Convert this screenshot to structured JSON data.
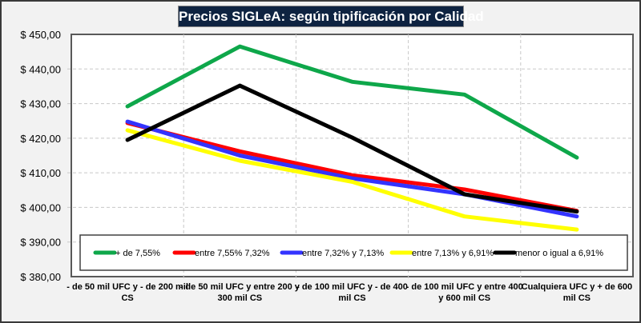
{
  "chart_data": {
    "type": "line",
    "title": "Precios SIGLeA: según tipificación por Calidad",
    "xlabel": "",
    "ylabel": "",
    "ylim": [
      380,
      450
    ],
    "ytick_values": [
      380,
      390,
      400,
      410,
      420,
      430,
      440,
      450
    ],
    "ytick_labels": [
      "$ 380,00",
      "$ 390,00",
      "$ 400,00",
      "$ 410,00",
      "$ 420,00",
      "$ 430,00",
      "$ 440,00",
      "$ 450,00"
    ],
    "grid": true,
    "legend_position": "bottom-inside",
    "categories": [
      [
        "- de 50 mil UFC y - de 200 mil",
        "CS"
      ],
      [
        "- de 50 mil UFC y entre  200 y",
        "300 mil CS"
      ],
      [
        "- de 100 mil UFC y - de 400",
        "mil CS"
      ],
      [
        "- de 100 mil UFC y entre  400",
        "y 600 mil CS"
      ],
      [
        "Cualquiera UFC y + de 600",
        "mil CS"
      ]
    ],
    "series": [
      {
        "name": "+ de 7,55%",
        "color": "#0ea74a",
        "values": [
          429.2,
          446.5,
          436.3,
          432.6,
          414.4
        ]
      },
      {
        "name": "entre 7,55% 7,32%",
        "color": "#ff0000",
        "values": [
          424.4,
          416.2,
          409.3,
          405.2,
          399.0
        ]
      },
      {
        "name": "entre 7,32% y 7,13%",
        "color": "#3333ff",
        "values": [
          424.8,
          415.0,
          408.4,
          403.8,
          397.4
        ]
      },
      {
        "name": "entre 7,13% y 6,91%",
        "color": "#ffff00",
        "values": [
          422.3,
          413.5,
          407.4,
          397.4,
          393.6
        ]
      },
      {
        "name": "menor o igual a 6,91%",
        "color": "#000000",
        "values": [
          419.5,
          435.2,
          420.2,
          403.8,
          398.8
        ]
      }
    ]
  }
}
